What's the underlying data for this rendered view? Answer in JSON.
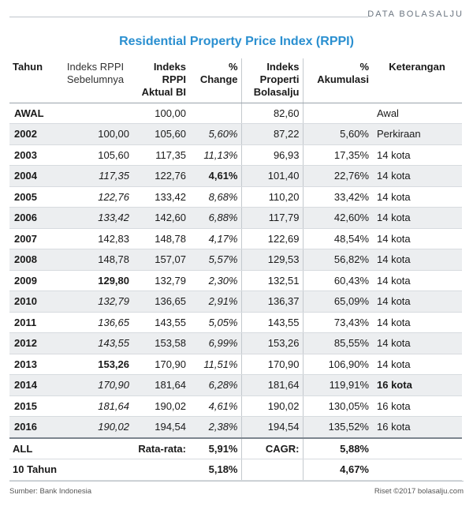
{
  "brand": "DATA BOLASALJU",
  "title": "Residential Property Price Index (RPPI)",
  "headers": [
    "Tahun",
    "Indeks RPPI Sebelumnya",
    "Indeks RPPI Aktual BI",
    "% Change",
    "Indeks Properti Bolasalju",
    "% Akumulasi",
    "Keterangan"
  ],
  "rows": [
    {
      "year": "AWAL",
      "prev": "",
      "actual": "100,00",
      "change": "",
      "bolasalju": "82,60",
      "akum": "",
      "ket": "Awal"
    },
    {
      "year": "2002",
      "prev": "100,00",
      "actual": "105,60",
      "change": "5,60%",
      "bolasalju": "87,22",
      "akum": "5,60%",
      "ket": "Perkiraan"
    },
    {
      "year": "2003",
      "prev": "105,60",
      "actual": "117,35",
      "change": "11,13%",
      "bolasalju": "96,93",
      "akum": "17,35%",
      "ket": "14 kota"
    },
    {
      "year": "2004",
      "prev": "117,35",
      "actual": "122,76",
      "change": "4,61%",
      "bolasalju": "101,40",
      "akum": "22,76%",
      "ket": "14 kota"
    },
    {
      "year": "2005",
      "prev": "122,76",
      "actual": "133,42",
      "change": "8,68%",
      "bolasalju": "110,20",
      "akum": "33,42%",
      "ket": "14 kota"
    },
    {
      "year": "2006",
      "prev": "133,42",
      "actual": "142,60",
      "change": "6,88%",
      "bolasalju": "117,79",
      "akum": "42,60%",
      "ket": "14 kota"
    },
    {
      "year": "2007",
      "prev": "142,83",
      "actual": "148,78",
      "change": "4,17%",
      "bolasalju": "122,69",
      "akum": "48,54%",
      "ket": "14 kota"
    },
    {
      "year": "2008",
      "prev": "148,78",
      "actual": "157,07",
      "change": "5,57%",
      "bolasalju": "129,53",
      "akum": "56,82%",
      "ket": "14 kota"
    },
    {
      "year": "2009",
      "prev": "129,80",
      "actual": "132,79",
      "change": "2,30%",
      "bolasalju": "132,51",
      "akum": "60,43%",
      "ket": "14 kota"
    },
    {
      "year": "2010",
      "prev": "132,79",
      "actual": "136,65",
      "change": "2,91%",
      "bolasalju": "136,37",
      "akum": "65,09%",
      "ket": "14 kota"
    },
    {
      "year": "2011",
      "prev": "136,65",
      "actual": "143,55",
      "change": "5,05%",
      "bolasalju": "143,55",
      "akum": "73,43%",
      "ket": "14 kota"
    },
    {
      "year": "2012",
      "prev": "143,55",
      "actual": "153,58",
      "change": "6,99%",
      "bolasalju": "153,26",
      "akum": "85,55%",
      "ket": "14 kota"
    },
    {
      "year": "2013",
      "prev": "153,26",
      "actual": "170,90",
      "change": "11,51%",
      "bolasalju": "170,90",
      "akum": "106,90%",
      "ket": "14 kota"
    },
    {
      "year": "2014",
      "prev": "170,90",
      "actual": "181,64",
      "change": "6,28%",
      "bolasalju": "181,64",
      "akum": "119,91%",
      "ket": "16 kota"
    },
    {
      "year": "2015",
      "prev": "181,64",
      "actual": "190,02",
      "change": "4,61%",
      "bolasalju": "190,02",
      "akum": "130,05%",
      "ket": "16 kota"
    },
    {
      "year": "2016",
      "prev": "190,02",
      "actual": "194,54",
      "change": "2,38%",
      "bolasalju": "194,54",
      "akum": "135,52%",
      "ket": "16 kota"
    }
  ],
  "summary": [
    {
      "label": "ALL",
      "avg_label": "Rata-rata:",
      "avg": "5,91%",
      "cagr_label": "CAGR:",
      "cagr": "5,88%"
    },
    {
      "label": "10 Tahun",
      "avg_label": "",
      "avg": "5,18%",
      "cagr_label": "",
      "cagr": "4,67%"
    }
  ],
  "footer": {
    "source": "Sumber: Bank Indonesia",
    "credit": "Riset ©2017 bolasalju.com"
  }
}
